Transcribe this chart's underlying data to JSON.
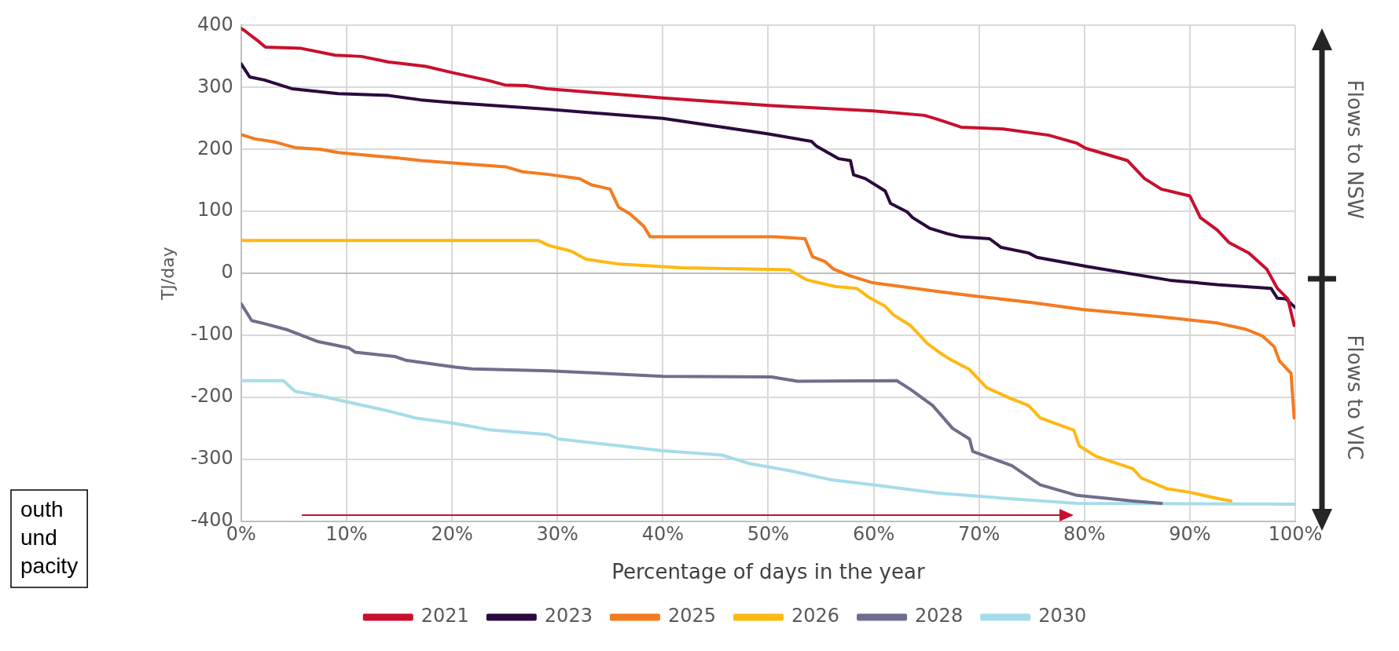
{
  "chart_data": {
    "type": "line",
    "xlabel": "Percentage of days in the year",
    "ylabel": "TJ/day",
    "xlim": [
      0,
      100
    ],
    "xticks": [
      {
        "value": 0,
        "label": "0%"
      },
      {
        "value": 10,
        "label": "10%"
      },
      {
        "value": 20,
        "label": "20%"
      },
      {
        "value": 30,
        "label": "30%"
      },
      {
        "value": 40,
        "label": "40%"
      },
      {
        "value": 50,
        "label": "50%"
      },
      {
        "value": 60,
        "label": "60%"
      },
      {
        "value": 70,
        "label": "70%"
      },
      {
        "value": 80,
        "label": "80%"
      },
      {
        "value": 90,
        "label": "90%"
      },
      {
        "value": 100,
        "label": "100%"
      }
    ],
    "ylim": [
      -400,
      400
    ],
    "yticks": [
      -400,
      -300,
      -200,
      -100,
      0,
      100,
      200,
      300,
      400
    ],
    "grid": true,
    "legend": "bottom",
    "marker": "none",
    "line_style": "solid",
    "annotations": [
      "outh\nund\npacity",
      "Flows to NSW",
      "Flows to VIC"
    ],
    "series": [
      {
        "name": "2021",
        "color": "#c8102e",
        "x": [
          0,
          0.3,
          0.9,
          1.6,
          2.3,
          5.7,
          8.9,
          11.4,
          14,
          17.5,
          20,
          23.5,
          25,
          27,
          29,
          40,
          50,
          60,
          64.8,
          66,
          68.3,
          72.3,
          76.6,
          79.3,
          80.1,
          84.1,
          85.7,
          87.3,
          90,
          91,
          92.6,
          93.7,
          95.6,
          96.7,
          97.3,
          98.3,
          99.3,
          99.9
        ],
        "values": [
          395,
          392,
          384,
          375,
          365,
          363,
          352,
          350,
          341,
          334,
          324,
          311,
          304,
          303,
          298,
          283,
          271,
          262,
          255,
          249,
          236,
          233,
          223,
          210,
          202,
          182,
          153,
          136,
          125,
          90,
          70,
          50,
          33,
          16,
          7,
          -24,
          -41,
          -84
        ]
      },
      {
        "name": "2023",
        "color": "#2b0a3d",
        "x": [
          0,
          0.8,
          2.2,
          4.8,
          9.2,
          14,
          17,
          20.3,
          29,
          40,
          50,
          54.1,
          54.6,
          56.7,
          57.8,
          58.1,
          59.2,
          61.1,
          61.6,
          63.2,
          63.7,
          65.3,
          67,
          68.3,
          71,
          72.1,
          74.7,
          75.5,
          80.3,
          88.1,
          92.6,
          97.7,
          98.3,
          99.1,
          100
        ],
        "values": [
          338,
          317,
          312,
          298,
          290,
          287,
          280,
          275,
          265,
          250,
          225,
          213,
          205,
          185,
          182,
          159,
          153,
          133,
          113,
          99,
          90,
          73,
          64,
          59,
          56,
          42,
          33,
          26,
          11,
          -11,
          -18,
          -24,
          -40,
          -41,
          -55
        ]
      },
      {
        "name": "2025",
        "color": "#f47b20",
        "x": [
          0,
          1.3,
          3.2,
          5.1,
          7.6,
          9.2,
          12.4,
          15.6,
          17.1,
          20.3,
          25.1,
          26.7,
          29,
          32.1,
          33.2,
          35,
          35.8,
          36.9,
          38.2,
          38.8,
          50.6,
          53.5,
          54.2,
          55.4,
          56.2,
          57.8,
          59.9,
          66,
          69.9,
          75,
          79.8,
          87.3,
          92.6,
          95.3,
          96.9,
          98,
          98.5,
          99.6,
          99.9
        ],
        "values": [
          224,
          217,
          212,
          203,
          200,
          195,
          190,
          185,
          182,
          178,
          172,
          164,
          160,
          153,
          143,
          136,
          107,
          96,
          76,
          59,
          59,
          56,
          27,
          19,
          7,
          -4,
          -15,
          -29,
          -37,
          -47,
          -58,
          -70,
          -80,
          -90,
          -101,
          -118,
          -141,
          -161,
          -233
        ]
      },
      {
        "name": "2026",
        "color": "#fdb913",
        "x": [
          0,
          28.2,
          29.2,
          31.3,
          32.7,
          35.9,
          41.8,
          52,
          53.6,
          56.3,
          58.4,
          59.5,
          61.1,
          61.9,
          63.5,
          65.1,
          66.2,
          67.2,
          69.1,
          70.7,
          72.9,
          74.7,
          75.8,
          79,
          79.5,
          81.1,
          84.6,
          85.4,
          87.8,
          90,
          92.1,
          93.9
        ],
        "values": [
          53,
          53,
          45,
          36,
          23,
          15,
          9,
          6,
          -10,
          -21,
          -24,
          -38,
          -53,
          -67,
          -84,
          -113,
          -127,
          -138,
          -155,
          -184,
          -201,
          -213,
          -233,
          -253,
          -278,
          -295,
          -315,
          -330,
          -347,
          -353,
          -361,
          -367
        ]
      },
      {
        "name": "2028",
        "color": "#6e6e8c",
        "x": [
          0,
          1,
          2.2,
          4.4,
          7.3,
          10.2,
          10.8,
          14.6,
          15.6,
          20.3,
          21.9,
          29.2,
          40,
          50.3,
          52.8,
          62.2,
          63.5,
          65.6,
          67.5,
          69.1,
          69.4,
          73.1,
          75.8,
          79.3,
          84.6,
          87.3
        ],
        "values": [
          -49,
          -76,
          -81,
          -91,
          -110,
          -120,
          -127,
          -134,
          -140,
          -151,
          -154,
          -157,
          -166,
          -167,
          -174,
          -173,
          -187,
          -213,
          -250,
          -267,
          -287,
          -310,
          -341,
          -358,
          -367,
          -371
        ]
      },
      {
        "name": "2030",
        "color": "#a6dcea",
        "x": [
          0,
          4,
          5.1,
          7.6,
          10.8,
          14,
          16.5,
          20.3,
          23.5,
          29.2,
          30.1,
          40,
          45.6,
          48.3,
          52,
          56,
          60,
          66,
          72.6,
          79.3,
          100
        ],
        "values": [
          -173,
          -173,
          -190,
          -198,
          -210,
          -222,
          -233,
          -242,
          -252,
          -260,
          -267,
          -286,
          -293,
          -307,
          -318,
          -333,
          -341,
          -354,
          -363,
          -371,
          -372
        ]
      }
    ]
  }
}
